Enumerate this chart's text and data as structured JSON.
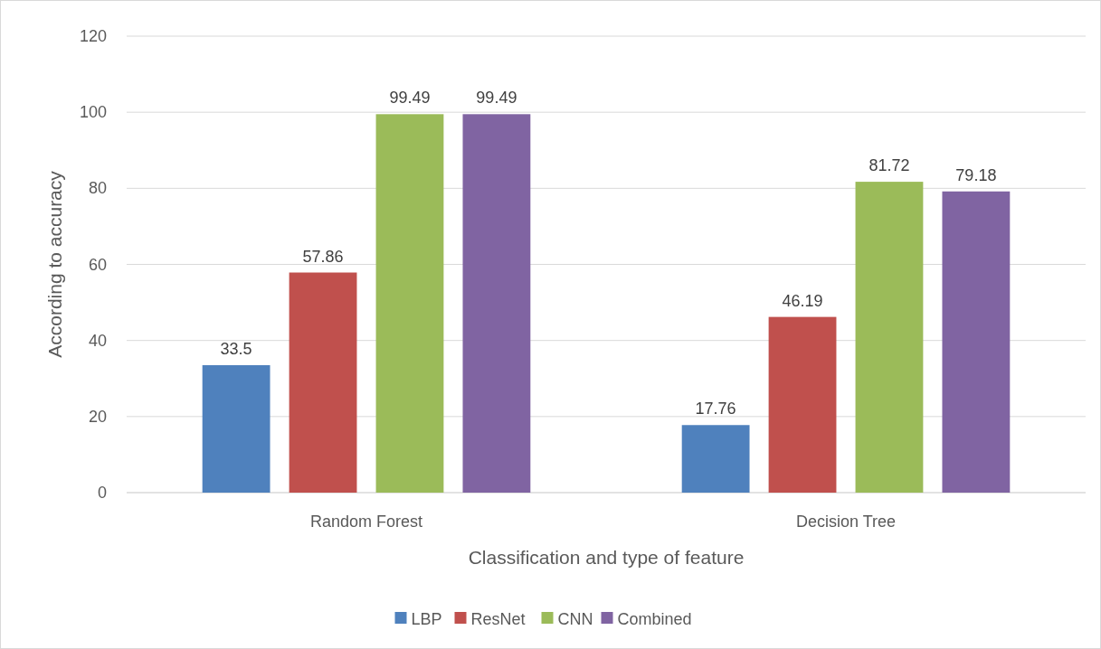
{
  "chart_data": {
    "type": "bar",
    "xlabel": "Classification and type of feature",
    "ylabel": "According to accuracy",
    "categories": [
      "Random Forest",
      "Decision Tree"
    ],
    "series": [
      {
        "name": "LBP",
        "color": "#4f81bd",
        "values": [
          33.5,
          17.76
        ]
      },
      {
        "name": "ResNet",
        "color": "#c0504d",
        "values": [
          57.86,
          46.19
        ]
      },
      {
        "name": "CNN",
        "color": "#9bbb59",
        "values": [
          99.49,
          81.72
        ]
      },
      {
        "name": "Combined",
        "color": "#8064a2",
        "values": [
          99.49,
          79.18
        ]
      }
    ],
    "ylim": [
      0,
      120
    ],
    "yticks": [
      0,
      20,
      40,
      60,
      80,
      100,
      120
    ],
    "grid": "y",
    "legend": "bottom",
    "data_labels": true
  }
}
